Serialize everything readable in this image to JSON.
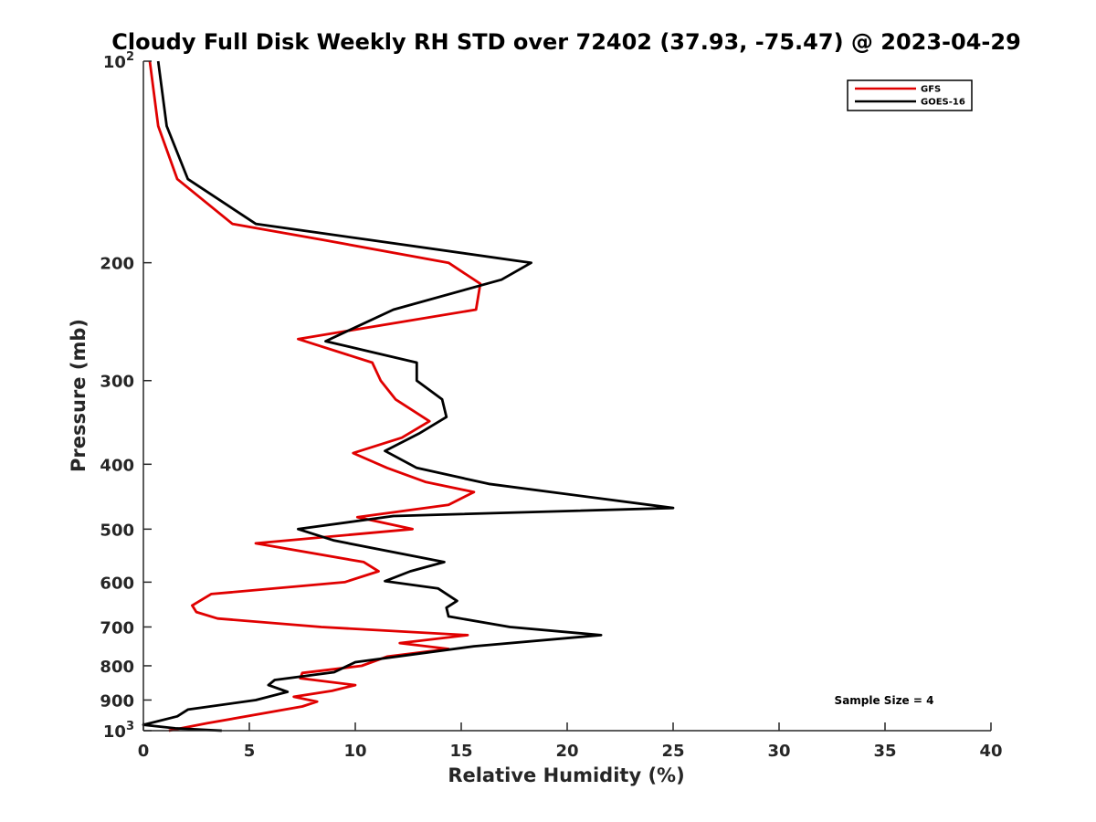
{
  "chart_data": {
    "type": "line",
    "title": "Cloudy Full Disk Weekly RH STD over 72402 (37.93, -75.47) @ 2023-04-29",
    "xlabel": "Relative Humidity (%)",
    "ylabel": "Pressure (mb)",
    "xlim": [
      0,
      40
    ],
    "ylim": [
      100,
      1000
    ],
    "y_scale": "log",
    "y_reversed": true,
    "x_ticks": [
      0,
      5,
      10,
      15,
      20,
      25,
      30,
      35,
      40
    ],
    "y_ticks": [
      {
        "value": 100,
        "label": "10",
        "sup": "2"
      },
      {
        "value": 200,
        "label": "200",
        "sup": ""
      },
      {
        "value": 300,
        "label": "300",
        "sup": ""
      },
      {
        "value": 400,
        "label": "400",
        "sup": ""
      },
      {
        "value": 500,
        "label": "500",
        "sup": ""
      },
      {
        "value": 600,
        "label": "600",
        "sup": ""
      },
      {
        "value": 700,
        "label": "700",
        "sup": ""
      },
      {
        "value": 800,
        "label": "800",
        "sup": ""
      },
      {
        "value": 900,
        "label": "900",
        "sup": ""
      },
      {
        "value": 1000,
        "label": "10",
        "sup": "3"
      }
    ],
    "grid": false,
    "legend_position": "top-right",
    "annotation": "Sample Size = 4",
    "series": [
      {
        "name": "GFS",
        "color": "#e00000",
        "points": [
          [
            0.3,
            100
          ],
          [
            0.7,
            125
          ],
          [
            1.6,
            150
          ],
          [
            4.2,
            175
          ],
          [
            8.5,
            185
          ],
          [
            14.4,
            200
          ],
          [
            15.9,
            215
          ],
          [
            15.7,
            235
          ],
          [
            7.3,
            260
          ],
          [
            10.8,
            282
          ],
          [
            11.2,
            300
          ],
          [
            11.9,
            320
          ],
          [
            13.5,
            345
          ],
          [
            12.2,
            365
          ],
          [
            9.9,
            385
          ],
          [
            11.5,
            405
          ],
          [
            13.3,
            425
          ],
          [
            15.6,
            440
          ],
          [
            14.4,
            460
          ],
          [
            10.1,
            480
          ],
          [
            12.7,
            500
          ],
          [
            5.3,
            525
          ],
          [
            10.4,
            560
          ],
          [
            11.1,
            578
          ],
          [
            9.5,
            600
          ],
          [
            3.2,
            625
          ],
          [
            2.3,
            650
          ],
          [
            2.5,
            665
          ],
          [
            3.5,
            680
          ],
          [
            8.4,
            700
          ],
          [
            15.3,
            720
          ],
          [
            12.1,
            740
          ],
          [
            14.4,
            755
          ],
          [
            11.5,
            775
          ],
          [
            10.3,
            800
          ],
          [
            7.5,
            820
          ],
          [
            7.4,
            835
          ],
          [
            10.0,
            855
          ],
          [
            8.9,
            872
          ],
          [
            7.1,
            890
          ],
          [
            8.2,
            905
          ],
          [
            7.5,
            920
          ],
          [
            3.0,
            975
          ],
          [
            1.2,
            1000
          ]
        ]
      },
      {
        "name": "GOES-16",
        "color": "#000000",
        "points": [
          [
            0.7,
            100
          ],
          [
            1.1,
            125
          ],
          [
            2.1,
            150
          ],
          [
            5.3,
            175
          ],
          [
            10.7,
            185
          ],
          [
            18.3,
            200
          ],
          [
            16.9,
            212
          ],
          [
            11.8,
            235
          ],
          [
            8.6,
            262
          ],
          [
            12.9,
            282
          ],
          [
            12.9,
            300
          ],
          [
            14.1,
            320
          ],
          [
            14.3,
            340
          ],
          [
            13.0,
            360
          ],
          [
            11.4,
            382
          ],
          [
            12.9,
            405
          ],
          [
            16.3,
            428
          ],
          [
            25.0,
            465
          ],
          [
            11.8,
            478
          ],
          [
            7.3,
            500
          ],
          [
            9.0,
            520
          ],
          [
            14.2,
            560
          ],
          [
            12.6,
            578
          ],
          [
            11.4,
            598
          ],
          [
            13.9,
            613
          ],
          [
            14.8,
            640
          ],
          [
            14.3,
            655
          ],
          [
            14.4,
            675
          ],
          [
            17.3,
            700
          ],
          [
            21.6,
            720
          ],
          [
            15.6,
            748
          ],
          [
            10.0,
            790
          ],
          [
            9.0,
            818
          ],
          [
            6.2,
            840
          ],
          [
            5.9,
            855
          ],
          [
            6.8,
            875
          ],
          [
            5.3,
            900
          ],
          [
            2.1,
            930
          ],
          [
            1.6,
            952
          ],
          [
            0.0,
            980
          ],
          [
            1.5,
            992
          ],
          [
            3.7,
            1000
          ]
        ]
      }
    ]
  }
}
